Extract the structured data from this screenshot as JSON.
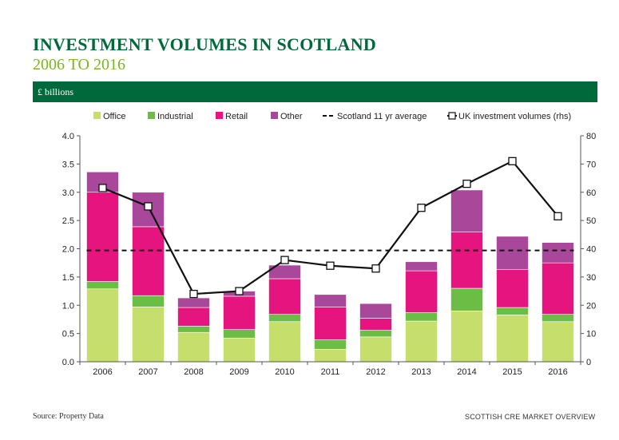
{
  "header": {
    "title": "INVESTMENT VOLUMES IN SCOTLAND",
    "subtitle": "2006 TO 2016",
    "band_label": "£ billions"
  },
  "footer": {
    "source": "Source: Property Data",
    "publication": "SCOTTISH CRE MARKET OVERVIEW"
  },
  "colors": {
    "brand_green": "#00693c",
    "subtitle_green": "#7ab51d",
    "office": "#c6de6b",
    "industrial": "#6cbd45",
    "retail": "#e5147f",
    "other": "#a9479b"
  },
  "chart_data": {
    "type": "bar",
    "stacked": true,
    "categories": [
      "2006",
      "2007",
      "2008",
      "2009",
      "2010",
      "2011",
      "2012",
      "2013",
      "2014",
      "2015",
      "2016"
    ],
    "series": [
      {
        "name": "Office",
        "color": "#c6de6b",
        "values": [
          1.29,
          0.97,
          0.52,
          0.42,
          0.71,
          0.22,
          0.44,
          0.72,
          0.9,
          0.83,
          0.71
        ]
      },
      {
        "name": "Industrial",
        "color": "#6cbd45",
        "values": [
          0.13,
          0.2,
          0.11,
          0.15,
          0.13,
          0.17,
          0.12,
          0.15,
          0.4,
          0.13,
          0.13
        ]
      },
      {
        "name": "Retail",
        "color": "#e5147f",
        "values": [
          1.58,
          1.22,
          0.33,
          0.59,
          0.63,
          0.58,
          0.21,
          0.74,
          1.0,
          0.67,
          0.91
        ]
      },
      {
        "name": "Other",
        "color": "#a9479b",
        "values": [
          0.36,
          0.61,
          0.17,
          0.09,
          0.24,
          0.22,
          0.26,
          0.16,
          0.74,
          0.59,
          0.36
        ]
      }
    ],
    "average": {
      "name": "Scotland 11 yr average",
      "value": 1.97
    },
    "uk_line": {
      "name": "UK investment volumes (rhs)",
      "values": [
        61.5,
        55,
        24,
        25,
        36,
        34,
        33,
        54.5,
        63,
        71,
        51.5
      ]
    },
    "ylim": [
      0,
      4.0
    ],
    "yticks": [
      "0.0",
      "0.5",
      "1.0",
      "1.5",
      "2.0",
      "2.5",
      "3.0",
      "3.5",
      "4.0"
    ],
    "y2lim": [
      0,
      80
    ],
    "y2ticks": [
      "0",
      "10",
      "20",
      "30",
      "40",
      "50",
      "60",
      "70",
      "80"
    ],
    "legend_position": "top",
    "grid": false
  }
}
